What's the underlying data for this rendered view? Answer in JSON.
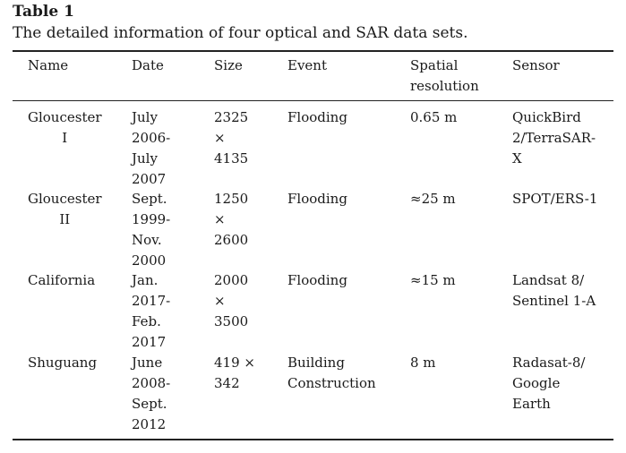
{
  "caption": {
    "label": "Table 1",
    "text": "The detailed information of four optical and SAR data sets."
  },
  "headers": [
    "Name",
    "Date",
    "Size",
    "Event",
    "Spatial\nresolution",
    "Sensor"
  ],
  "rows": [
    {
      "name": "Gloucester\nI",
      "date": "July\n2006-\nJuly\n2007",
      "size": "2325\n×\n4135",
      "event": "Flooding",
      "resolution": "0.65 m",
      "sensor": "QuickBird\n2/TerraSAR-\nX"
    },
    {
      "name": "Gloucester\nII",
      "date": "Sept.\n1999-\nNov.\n2000",
      "size": "1250\n×\n2600",
      "event": "Flooding",
      "resolution": "≈25 m",
      "sensor": "SPOT/ERS-1"
    },
    {
      "name": "California",
      "date": "Jan.\n2017-\nFeb.\n2017",
      "size": "2000\n×\n3500",
      "event": "Flooding",
      "resolution": "≈15 m",
      "sensor": "Landsat 8/\nSentinel 1-A"
    },
    {
      "name": "Shuguang",
      "date": "June\n2008-\nSept.\n2012",
      "size": "419 ×\n342",
      "event": "Building\nConstruction",
      "resolution": "8 m",
      "sensor": "Radasat-8/\nGoogle\nEarth"
    }
  ]
}
